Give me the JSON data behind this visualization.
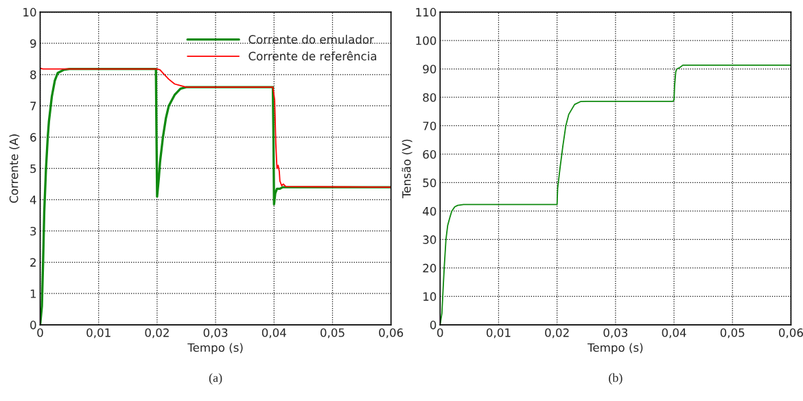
{
  "chart_data": [
    {
      "type": "line",
      "xlabel": "Tempo (s)",
      "ylabel": "Corrente (A)",
      "annotations": [
        "(a)"
      ],
      "xlim": [
        0,
        0.06
      ],
      "ylim": [
        0,
        10
      ],
      "xticks": [
        0,
        {
          "value": 0.01,
          "label": "0,01"
        },
        {
          "value": 0.02,
          "label": "0,02"
        },
        {
          "value": 0.03,
          "label": "0,03"
        },
        {
          "value": 0.04,
          "label": "0,04"
        },
        {
          "value": 0.05,
          "label": "0,05"
        },
        {
          "value": 0.06,
          "label": "0,06"
        }
      ],
      "yticks": [
        0,
        1,
        2,
        3,
        4,
        5,
        6,
        7,
        8,
        9,
        10
      ],
      "grid": true,
      "legend": "top right",
      "series": [
        {
          "name": "Corrente do emulador",
          "color": "#108a10",
          "x": [
            0,
            0.0003,
            0.0005,
            0.0007,
            0.001,
            0.0013,
            0.0015,
            0.002,
            0.0025,
            0.003,
            0.004,
            0.005,
            0.0198,
            0.0199,
            0.02,
            0.0203,
            0.0205,
            0.021,
            0.0215,
            0.022,
            0.023,
            0.024,
            0.025,
            0.0398,
            0.0399,
            0.04,
            0.0402,
            0.0405,
            0.041,
            0.0415,
            0.06
          ],
          "values": [
            0,
            0.6,
            2,
            3.6,
            5,
            6,
            6.5,
            7.3,
            7.8,
            8.05,
            8.15,
            8.18,
            8.18,
            6,
            4.1,
            4.7,
            5.2,
            6,
            6.6,
            7,
            7.35,
            7.55,
            7.6,
            7.6,
            6,
            3.85,
            4.2,
            4.35,
            4.35,
            4.4,
            4.4
          ]
        },
        {
          "name": "Corrente de referência",
          "color": "#ff0000",
          "x": [
            0,
            0.0005,
            0.02,
            0.0205,
            0.021,
            0.022,
            0.023,
            0.024,
            0.025,
            0.0398,
            0.0401,
            0.0402,
            0.0403,
            0.0405,
            0.0407,
            0.0409,
            0.041,
            0.0413,
            0.0416,
            0.042,
            0.06
          ],
          "values": [
            8.2,
            8.18,
            8.18,
            8.15,
            8.05,
            7.85,
            7.7,
            7.65,
            7.6,
            7.6,
            7.2,
            6.5,
            5.8,
            5,
            5.1,
            4.9,
            4.6,
            4.45,
            4.5,
            4.42,
            4.4
          ]
        }
      ]
    },
    {
      "type": "line",
      "xlabel": "Tempo (s)",
      "ylabel": "Tensão (V)",
      "annotations": [
        "(b)"
      ],
      "xlim": [
        0,
        0.06
      ],
      "ylim": [
        0,
        110
      ],
      "xticks": [
        0,
        {
          "value": 0.01,
          "label": "0,01"
        },
        {
          "value": 0.02,
          "label": "0,02"
        },
        {
          "value": 0.03,
          "label": "0,03"
        },
        {
          "value": 0.04,
          "label": "0,04"
        },
        {
          "value": 0.05,
          "label": "0,05"
        },
        {
          "value": 0.06,
          "label": "0,06"
        }
      ],
      "yticks": [
        0,
        10,
        20,
        30,
        40,
        50,
        60,
        70,
        80,
        90,
        100,
        110
      ],
      "grid": true,
      "series": [
        {
          "color": "#108a10",
          "x": [
            0,
            0.0003,
            0.0005,
            0.0007,
            0.001,
            0.0013,
            0.0017,
            0.002,
            0.0025,
            0.003,
            0.004,
            0.02,
            0.0201,
            0.0205,
            0.021,
            0.0215,
            0.022,
            0.023,
            0.024,
            0.025,
            0.0398,
            0.04,
            0.0401,
            0.0403,
            0.0405,
            0.041,
            0.0415,
            0.06
          ],
          "values": [
            0,
            4,
            12,
            20,
            30,
            35,
            38,
            40,
            41.5,
            42,
            42.3,
            42.3,
            48,
            55,
            63,
            70,
            74,
            77.5,
            78.5,
            78.6,
            78.6,
            79,
            84,
            89,
            90,
            90.5,
            91.3,
            91.3
          ]
        }
      ]
    }
  ]
}
